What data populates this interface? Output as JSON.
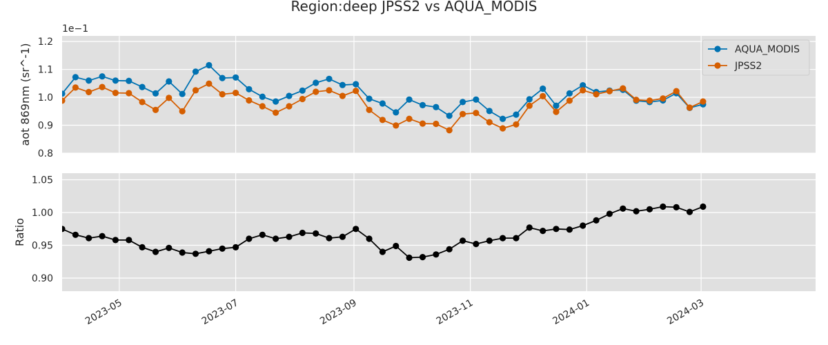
{
  "title": "Region:deep JPSS2 vs AQUA_MODIS",
  "chart_data": [
    {
      "type": "line",
      "ylabel": "aot 869nm (sr^-1)",
      "offset_label": "1e−1",
      "ylim": [
        0.8,
        1.22
      ],
      "yticks": [
        "0.8",
        "0.9",
        "1.0",
        "1.1",
        "1.2"
      ],
      "grid": true,
      "legend_position": "top-right",
      "series": [
        {
          "name": "AQUA_MODIS",
          "color": "#0072b2",
          "values": [
            1.013,
            1.072,
            1.06,
            1.075,
            1.06,
            1.059,
            1.037,
            1.014,
            1.057,
            1.012,
            1.092,
            1.115,
            1.069,
            1.071,
            1.029,
            1.002,
            0.985,
            1.005,
            1.024,
            1.052,
            1.066,
            1.044,
            1.047,
            0.995,
            0.978,
            0.946,
            0.992,
            0.972,
            0.965,
            0.934,
            0.983,
            0.992,
            0.951,
            0.923,
            0.938,
            0.993,
            1.031,
            0.97,
            1.014,
            1.043,
            1.019,
            1.024,
            1.027,
            0.988,
            0.983,
            0.989,
            1.015,
            0.962,
            0.975
          ]
        },
        {
          "name": "JPSS2",
          "color": "#d55e00",
          "values": [
            0.988,
            1.035,
            1.019,
            1.037,
            1.016,
            1.015,
            0.983,
            0.955,
            0.998,
            0.95,
            1.025,
            1.049,
            1.011,
            1.016,
            0.989,
            0.968,
            0.945,
            0.968,
            0.994,
            1.02,
            1.025,
            1.005,
            1.023,
            0.955,
            0.919,
            0.899,
            0.923,
            0.906,
            0.905,
            0.882,
            0.94,
            0.944,
            0.911,
            0.889,
            0.903,
            0.97,
            1.004,
            0.948,
            0.988,
            1.025,
            1.011,
            1.022,
            1.032,
            0.991,
            0.988,
            0.996,
            1.022,
            0.963,
            0.985
          ]
        }
      ]
    },
    {
      "type": "line",
      "ylabel": "Ratio",
      "ylim": [
        0.88,
        1.06
      ],
      "yticks": [
        "0.90",
        "0.95",
        "1.00",
        "1.05"
      ],
      "grid": true,
      "series": [
        {
          "color": "#000000",
          "values": [
            0.975,
            0.966,
            0.961,
            0.964,
            0.958,
            0.958,
            0.947,
            0.94,
            0.946,
            0.939,
            0.937,
            0.941,
            0.945,
            0.947,
            0.96,
            0.966,
            0.96,
            0.963,
            0.969,
            0.968,
            0.961,
            0.963,
            0.975,
            0.96,
            0.94,
            0.949,
            0.931,
            0.932,
            0.936,
            0.944,
            0.957,
            0.952,
            0.957,
            0.961,
            0.961,
            0.977,
            0.972,
            0.975,
            0.974,
            0.98,
            0.988,
            0.998,
            1.006,
            1.002,
            1.005,
            1.009,
            1.008,
            1.001,
            1.009
          ]
        }
      ]
    }
  ],
  "x_axis": {
    "start_date": "2023-04-01",
    "point_step_days": 7,
    "point_count": 49,
    "xlim": [
      "2023-04-01",
      "2024-04-30"
    ],
    "ticks": [
      {
        "date": "2023-05-01",
        "label": "2023-05"
      },
      {
        "date": "2023-07-01",
        "label": "2023-07"
      },
      {
        "date": "2023-09-01",
        "label": "2023-09"
      },
      {
        "date": "2023-11-01",
        "label": "2023-11"
      },
      {
        "date": "2024-01-01",
        "label": "2024-01"
      },
      {
        "date": "2024-03-01",
        "label": "2024-03"
      }
    ]
  }
}
